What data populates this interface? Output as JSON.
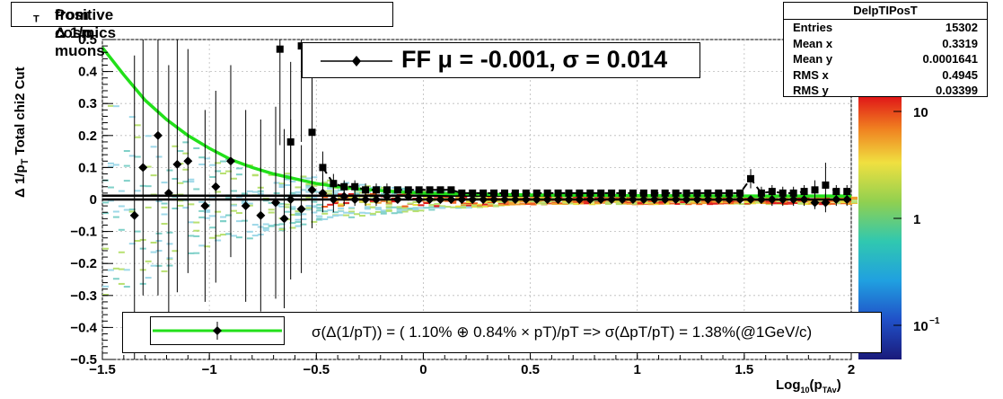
{
  "title": "Positive Δ 1/p_T from cosmics muons",
  "title_parts": {
    "main": "Positive Δ 1/p",
    "sub": "T",
    "tail": "  from cosmics muons"
  },
  "y_label_parts": {
    "main": "Δ 1/p",
    "sub": "T",
    "tail": "   Total chi2 Cut"
  },
  "x_label_parts": {
    "main": "Log",
    "sub1": "10",
    "mid": "(p",
    "sub2": "TAv",
    "tail": ")"
  },
  "stats": {
    "name": "DelpTIPosT",
    "rows": [
      {
        "label": "Entries",
        "value": "15302"
      },
      {
        "label": "Mean x",
        "value": "0.3319"
      },
      {
        "label": "Mean y",
        "value": "0.0001641"
      },
      {
        "label": "RMS x",
        "value": "0.4945"
      },
      {
        "label": "RMS y",
        "value": "0.03399"
      }
    ]
  },
  "ff_text": "FF μ = -0.001, σ =   0.014",
  "resolution_text": "σ(Δ(1/pT)) = ( 1.10% ⊕  0.84% × pT)/pT => σ(ΔpT/pT) =  1.38%(@1GeV/c)",
  "colors": {
    "fit": "#22e01a",
    "markers": "#000000"
  },
  "chart_data": {
    "type": "scatter",
    "x_ticks": [
      "−1.5",
      "−1",
      "−0.5",
      "0",
      "0.5",
      "1",
      "1.5",
      "2"
    ],
    "y_ticks": [
      "−0.5",
      "−0.4",
      "−0.3",
      "−0.2",
      "−0.1",
      "0",
      "0.1",
      "0.2",
      "0.3",
      "0.4",
      "0.5"
    ],
    "xlim": [
      -1.5,
      2
    ],
    "ylim": [
      -0.5,
      0.5
    ],
    "colorbar_ticks": [
      {
        "label": "10",
        "exp": "",
        "value": 10
      },
      {
        "label": "1",
        "exp": "",
        "value": 1
      },
      {
        "label": "10",
        "exp": "−1",
        "value": 0.1
      }
    ],
    "grid": true,
    "diamond_series": {
      "x": [
        -1.35,
        -1.31,
        -1.24,
        -1.19,
        -1.15,
        -1.1,
        -1.02,
        -0.97,
        -0.9,
        -0.83,
        -0.76,
        -0.69,
        -0.65,
        -0.62,
        -0.57,
        -0.52,
        -0.47,
        -0.42,
        -0.37,
        -0.32,
        -0.27,
        -0.22,
        -0.17,
        -0.12,
        -0.07,
        -0.02,
        0.03,
        0.08,
        0.13,
        0.18,
        0.23,
        0.28,
        0.33,
        0.38,
        0.43,
        0.48,
        0.53,
        0.58,
        0.63,
        0.68,
        0.73,
        0.78,
        0.83,
        0.88,
        0.93,
        0.98,
        1.03,
        1.08,
        1.13,
        1.18,
        1.23,
        1.28,
        1.33,
        1.38,
        1.43,
        1.48,
        1.53,
        1.58,
        1.63,
        1.68,
        1.73,
        1.78,
        1.83,
        1.88,
        1.93,
        1.98
      ],
      "y": [
        -0.05,
        0.1,
        0.2,
        0.02,
        0.11,
        0.12,
        -0.02,
        0.04,
        0.12,
        -0.02,
        -0.05,
        -0.01,
        -0.06,
        0.0,
        -0.03,
        0.03,
        0.02,
        0.0,
        0.01,
        0.0,
        0.0,
        0.0,
        0.01,
        0.0,
        0.01,
        0.0,
        0.0,
        0.0,
        0.0,
        0.0,
        0.0,
        0.0,
        0.0,
        0.0,
        0.0,
        0.0,
        0.0,
        0.0,
        0.0,
        0.0,
        0.0,
        0.0,
        0.0,
        0.0,
        0.0,
        0.0,
        0.0,
        0.0,
        0.0,
        0.0,
        0.0,
        0.0,
        0.0,
        0.0,
        0.0,
        0.0,
        0.0,
        0.0,
        0.0,
        0.0,
        0.0,
        0.0,
        -0.01,
        -0.01,
        0.0,
        0.0
      ],
      "err": [
        0.5,
        0.4,
        0.5,
        0.4,
        0.4,
        0.35,
        0.3,
        0.3,
        0.3,
        0.3,
        0.3,
        0.3,
        0.28,
        0.25,
        0.2,
        0.12,
        0.06,
        0.04,
        0.03,
        0.02,
        0.02,
        0.02,
        0.02,
        0.01,
        0.01,
        0.01,
        0.01,
        0.01,
        0.01,
        0.01,
        0.01,
        0.01,
        0.01,
        0.01,
        0.01,
        0.01,
        0.01,
        0.01,
        0.01,
        0.01,
        0.01,
        0.01,
        0.01,
        0.01,
        0.01,
        0.01,
        0.01,
        0.01,
        0.01,
        0.01,
        0.01,
        0.01,
        0.01,
        0.01,
        0.01,
        0.01,
        0.01,
        0.01,
        0.02,
        0.02,
        0.02,
        0.02,
        0.02,
        0.03,
        0.02,
        0.02
      ]
    },
    "square_series": {
      "x": [
        -0.67,
        -0.62,
        -0.57,
        -0.52,
        -0.47,
        -0.42,
        -0.37,
        -0.32,
        -0.27,
        -0.22,
        -0.17,
        -0.12,
        -0.07,
        -0.02,
        0.03,
        0.08,
        0.13,
        0.18,
        0.23,
        0.28,
        0.33,
        0.38,
        0.43,
        0.48,
        0.53,
        0.58,
        0.63,
        0.68,
        0.73,
        0.78,
        0.83,
        0.88,
        0.93,
        0.98,
        1.03,
        1.08,
        1.13,
        1.18,
        1.23,
        1.28,
        1.33,
        1.38,
        1.43,
        1.48,
        1.53,
        1.58,
        1.63,
        1.68,
        1.73,
        1.78,
        1.83,
        1.88,
        1.93,
        1.98
      ],
      "y": [
        0.47,
        0.18,
        0.48,
        0.21,
        0.1,
        0.05,
        0.04,
        0.04,
        0.03,
        0.03,
        0.03,
        0.03,
        0.03,
        0.03,
        0.03,
        0.03,
        0.03,
        0.02,
        0.02,
        0.02,
        0.02,
        0.02,
        0.02,
        0.02,
        0.02,
        0.02,
        0.02,
        0.02,
        0.02,
        0.02,
        0.02,
        0.02,
        0.02,
        0.02,
        0.02,
        0.02,
        0.02,
        0.02,
        0.02,
        0.02,
        0.02,
        0.02,
        0.02,
        0.02,
        0.065,
        0.02,
        0.025,
        0.02,
        0.02,
        0.025,
        0.03,
        0.045,
        0.025,
        0.025
      ],
      "err": [
        0.3,
        0.25,
        0.3,
        0.2,
        0.05,
        0.03,
        0.02,
        0.02,
        0.02,
        0.02,
        0.02,
        0.01,
        0.01,
        0.01,
        0.01,
        0.01,
        0.01,
        0.01,
        0.01,
        0.01,
        0.01,
        0.01,
        0.01,
        0.01,
        0.01,
        0.01,
        0.01,
        0.01,
        0.01,
        0.01,
        0.01,
        0.01,
        0.01,
        0.01,
        0.01,
        0.01,
        0.01,
        0.01,
        0.01,
        0.01,
        0.01,
        0.01,
        0.01,
        0.01,
        0.03,
        0.02,
        0.02,
        0.02,
        0.02,
        0.02,
        0.03,
        0.07,
        0.02,
        0.02
      ]
    },
    "reference_lines_y": [
      0.012,
      0.0
    ],
    "fit_curve": {
      "label": "σ(Δ(1/pT))",
      "x": [
        -1.5,
        -1.4,
        -1.3,
        -1.2,
        -1.1,
        -1.0,
        -0.9,
        -0.8,
        -0.7,
        -0.6,
        -0.5,
        -0.4,
        -0.3,
        -0.2,
        -0.1,
        0.0,
        0.5,
        1.0,
        1.5,
        2.0
      ],
      "y": [
        0.475,
        0.39,
        0.31,
        0.25,
        0.2,
        0.16,
        0.125,
        0.1,
        0.08,
        0.065,
        0.05,
        0.04,
        0.033,
        0.028,
        0.023,
        0.02,
        0.014,
        0.012,
        0.011,
        0.011
      ]
    }
  }
}
